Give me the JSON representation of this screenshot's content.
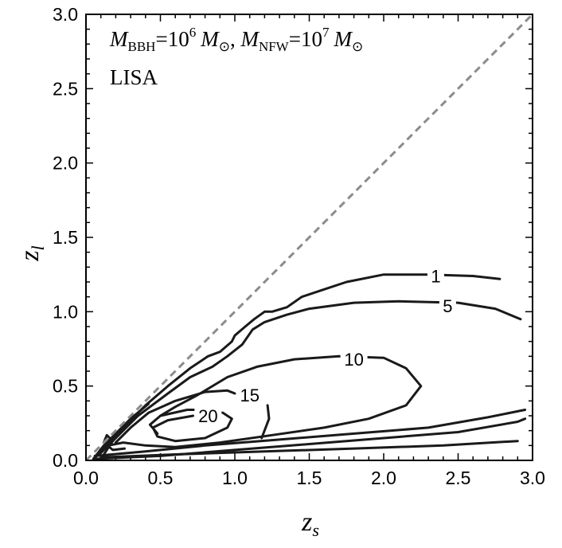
{
  "chart_data": {
    "type": "line",
    "title": "",
    "xlabel": "z",
    "xlabel_sub": "s",
    "ylabel": "z",
    "ylabel_sub": "l",
    "xlim": [
      0,
      3
    ],
    "ylim": [
      0,
      3
    ],
    "x_ticks": [
      "0.0",
      "0.5",
      "1.0",
      "1.5",
      "2.0",
      "2.5",
      "3.0"
    ],
    "y_ticks": [
      "0.0",
      "0.5",
      "1.0",
      "1.5",
      "2.0",
      "2.5",
      "3.0"
    ],
    "grid": false,
    "annotation_line1": {
      "m1": "M",
      "m1_sub": "BBH",
      "eq1": "=10",
      "exp1": "6",
      "m1_unit": "M",
      "m1_unit_sub": "⊙",
      "sep": ", ",
      "m2": "M",
      "m2_sub": "NFW",
      "eq2": "=10",
      "exp2": "7",
      "m2_unit": "M",
      "m2_unit_sub": "⊙"
    },
    "annotation_line2": "LISA",
    "reference_line": {
      "style": "dashed",
      "color": "#8c8c8c",
      "points": [
        [
          0,
          0
        ],
        [
          3,
          3
        ]
      ]
    },
    "contours": [
      {
        "level": "1",
        "label_at": [
          2.35,
          1.24
        ],
        "points": [
          [
            0.08,
            0.04
          ],
          [
            0.2,
            0.17
          ],
          [
            0.4,
            0.37
          ],
          [
            0.55,
            0.5
          ],
          [
            0.7,
            0.62
          ],
          [
            0.82,
            0.7
          ],
          [
            0.9,
            0.73
          ],
          [
            0.98,
            0.8
          ],
          [
            1.0,
            0.84
          ],
          [
            1.07,
            0.9
          ],
          [
            1.13,
            0.95
          ],
          [
            1.2,
            1.0
          ],
          [
            1.25,
            1.0
          ],
          [
            1.35,
            1.03
          ],
          [
            1.45,
            1.1
          ],
          [
            1.6,
            1.15
          ],
          [
            1.75,
            1.2
          ],
          [
            2.0,
            1.25
          ],
          [
            2.3,
            1.25
          ],
          [
            2.6,
            1.24
          ],
          [
            2.78,
            1.22
          ]
        ]
      },
      {
        "level": "5",
        "label_at": [
          2.43,
          1.04
        ],
        "points": [
          [
            0.06,
            0.02
          ],
          [
            0.1,
            0.05
          ],
          [
            0.18,
            0.13
          ],
          [
            0.35,
            0.3
          ],
          [
            0.55,
            0.45
          ],
          [
            0.7,
            0.56
          ],
          [
            0.85,
            0.63
          ],
          [
            0.95,
            0.7
          ],
          [
            1.05,
            0.78
          ],
          [
            1.12,
            0.88
          ],
          [
            1.2,
            0.93
          ],
          [
            1.35,
            0.98
          ],
          [
            1.5,
            1.02
          ],
          [
            1.8,
            1.06
          ],
          [
            2.1,
            1.07
          ],
          [
            2.5,
            1.06
          ],
          [
            2.75,
            1.02
          ],
          [
            2.92,
            0.95
          ]
        ]
      },
      {
        "level": "10",
        "label_at": [
          1.8,
          0.68
        ],
        "points": [
          [
            0.5,
            0.3
          ],
          [
            0.6,
            0.36
          ],
          [
            0.75,
            0.44
          ],
          [
            0.95,
            0.56
          ],
          [
            1.15,
            0.63
          ],
          [
            1.4,
            0.68
          ],
          [
            1.7,
            0.7
          ],
          [
            2.0,
            0.69
          ],
          [
            2.15,
            0.62
          ],
          [
            2.25,
            0.5
          ],
          [
            2.15,
            0.37
          ],
          [
            1.9,
            0.28
          ],
          [
            1.6,
            0.22
          ],
          [
            1.25,
            0.17
          ],
          [
            0.9,
            0.12
          ],
          [
            0.6,
            0.09
          ],
          [
            0.4,
            0.1
          ],
          [
            0.25,
            0.12
          ],
          [
            0.15,
            0.1
          ]
        ]
      },
      {
        "level": "15",
        "label_at": [
          1.1,
          0.44
        ],
        "points": [
          [
            0.2,
            0.12
          ],
          [
            0.3,
            0.22
          ],
          [
            0.42,
            0.32
          ],
          [
            0.6,
            0.4
          ],
          [
            0.8,
            0.46
          ],
          [
            0.95,
            0.47
          ],
          [
            1.0,
            0.45
          ]
        ]
      },
      {
        "level": "20",
        "label_at": [
          0.82,
          0.3
        ],
        "points": [
          [
            0.72,
            0.3
          ],
          [
            0.55,
            0.27
          ],
          [
            0.45,
            0.22
          ],
          [
            0.48,
            0.16
          ],
          [
            0.6,
            0.13
          ],
          [
            0.8,
            0.15
          ],
          [
            0.95,
            0.22
          ],
          [
            0.98,
            0.28
          ],
          [
            0.92,
            0.32
          ],
          [
            0.82,
            0.34
          ],
          [
            0.68,
            0.34
          ],
          [
            0.5,
            0.3
          ],
          [
            0.43,
            0.24
          ],
          [
            0.48,
            0.18
          ]
        ]
      },
      {
        "level": "",
        "points": [
          [
            1.18,
            0.15
          ],
          [
            1.23,
            0.28
          ],
          [
            1.22,
            0.37
          ]
        ]
      },
      {
        "level": "",
        "points": [
          [
            0.06,
            0.01
          ],
          [
            0.5,
            0.03
          ],
          [
            1.0,
            0.07
          ],
          [
            1.5,
            0.11
          ],
          [
            2.0,
            0.15
          ],
          [
            2.5,
            0.19
          ],
          [
            2.9,
            0.26
          ],
          [
            2.95,
            0.28
          ]
        ]
      },
      {
        "level": "",
        "points": [
          [
            0.06,
            0.03
          ],
          [
            0.4,
            0.06
          ],
          [
            0.8,
            0.1
          ],
          [
            1.3,
            0.14
          ],
          [
            1.8,
            0.18
          ],
          [
            2.3,
            0.22
          ],
          [
            2.7,
            0.29
          ],
          [
            2.95,
            0.34
          ]
        ]
      },
      {
        "level": "",
        "points": [
          [
            0.1,
            0.02
          ],
          [
            0.6,
            0.04
          ],
          [
            1.2,
            0.06
          ],
          [
            1.8,
            0.08
          ],
          [
            2.4,
            0.1
          ],
          [
            2.9,
            0.13
          ]
        ]
      },
      {
        "level": "",
        "points": [
          [
            0.05,
            0.01
          ],
          [
            0.12,
            0.1
          ],
          [
            0.22,
            0.2
          ],
          [
            0.3,
            0.28
          ],
          [
            0.42,
            0.38
          ]
        ]
      },
      {
        "level": "",
        "points": [
          [
            0.1,
            0.01
          ],
          [
            0.18,
            0.13
          ],
          [
            0.14,
            0.17
          ],
          [
            0.12,
            0.12
          ],
          [
            0.18,
            0.07
          ],
          [
            0.26,
            0.08
          ]
        ]
      }
    ]
  }
}
